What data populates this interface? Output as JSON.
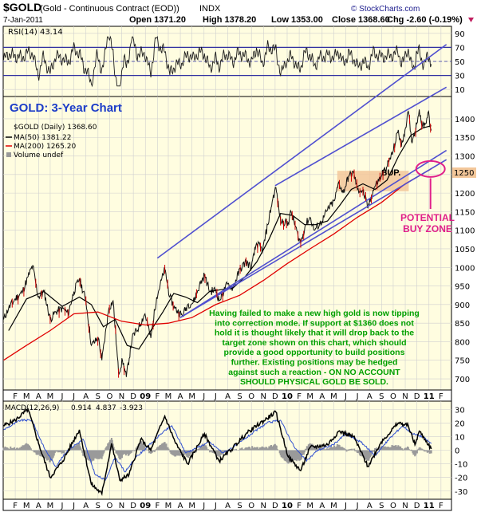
{
  "header": {
    "symbol": "$GOLD",
    "name": "(Gold - Continuous Contract (EOD))",
    "exchange": "INDX",
    "date": "7-Jan-2011",
    "open": "Open 1371.20",
    "high": "High 1378.20",
    "low": "Low 1353.00",
    "close": "Close 1368.60",
    "chg": "Chg -2.60 (-0.19%)",
    "watermark": "© StockCharts.com"
  },
  "colors": {
    "panel_bg": "#fffde0",
    "grid": "#c8c8c8",
    "trend": "#5050d0",
    "ma50": "#000000",
    "ma200": "#e00000",
    "annotation": "#00a000",
    "buyzone": "#e0208a",
    "sup": "#f3c79a",
    "title_blue": "#1c3cc8"
  },
  "chart_data": {
    "type": "line",
    "rsi_panel": {
      "legend": "RSI(14) 43.14",
      "ticks": [
        90,
        70,
        50,
        30,
        10
      ],
      "ylim": [
        0,
        100
      ],
      "upper_line": 70,
      "lower_line": 30
    },
    "price_panel": {
      "title": "GOLD: 3-Year Chart",
      "legend": [
        "$GOLD (Daily) 1368.60",
        "MA(50) 1381.22",
        "MA(200) 1265.20",
        "Volume undef"
      ],
      "ticks": [
        1400,
        1350,
        1300,
        1250,
        1200,
        1150,
        1100,
        1050,
        1000,
        950,
        900,
        850,
        800,
        750,
        700
      ],
      "ylim": [
        670,
        1460
      ],
      "highlight_level": "1250",
      "annotations": {
        "sup": "SUP.",
        "buyzone_line1": "POTENTIAL",
        "buyzone_line2": "BUY ZONE",
        "comment": [
          "Having failed to make a new high gold is now tipping",
          "into correction mode. If support at $1360 does not",
          "hold it is thought likely that it will drop back to the",
          "target zone shown on this chart, which should",
          "provide a good opportunity to build positions",
          "further. Existing positions may be hedged",
          "against such a reaction - ON NO ACCOUNT",
          "SHOULD PHYSICAL GOLD BE SOLD."
        ]
      },
      "price_points": [
        [
          "2008-01-02",
          860
        ],
        [
          "2008-01-15",
          890
        ],
        [
          "2008-02-01",
          915
        ],
        [
          "2008-02-20",
          935
        ],
        [
          "2008-03-05",
          975
        ],
        [
          "2008-03-17",
          1005
        ],
        [
          "2008-03-31",
          920
        ],
        [
          "2008-04-15",
          935
        ],
        [
          "2008-05-01",
          860
        ],
        [
          "2008-05-15",
          880
        ],
        [
          "2008-06-02",
          890
        ],
        [
          "2008-06-16",
          875
        ],
        [
          "2008-07-01",
          935
        ],
        [
          "2008-07-15",
          970
        ],
        [
          "2008-08-01",
          910
        ],
        [
          "2008-08-15",
          790
        ],
        [
          "2008-09-02",
          810
        ],
        [
          "2008-09-11",
          750
        ],
        [
          "2008-09-29",
          890
        ],
        [
          "2008-10-10",
          910
        ],
        [
          "2008-10-24",
          715
        ],
        [
          "2008-11-03",
          750
        ],
        [
          "2008-11-13",
          705
        ],
        [
          "2008-11-28",
          810
        ],
        [
          "2008-12-15",
          840
        ],
        [
          "2008-12-31",
          875
        ],
        [
          "2009-01-15",
          810
        ],
        [
          "2009-01-30",
          920
        ],
        [
          "2009-02-20",
          995
        ],
        [
          "2009-03-05",
          920
        ],
        [
          "2009-03-18",
          890
        ],
        [
          "2009-04-06",
          870
        ],
        [
          "2009-04-20",
          900
        ],
        [
          "2009-05-04",
          905
        ],
        [
          "2009-05-20",
          950
        ],
        [
          "2009-06-02",
          980
        ],
        [
          "2009-06-16",
          935
        ],
        [
          "2009-07-01",
          940
        ],
        [
          "2009-07-10",
          910
        ],
        [
          "2009-07-31",
          955
        ],
        [
          "2009-08-14",
          945
        ],
        [
          "2009-09-02",
          995
        ],
        [
          "2009-09-17",
          1015
        ],
        [
          "2009-10-01",
          1000
        ],
        [
          "2009-10-14",
          1065
        ],
        [
          "2009-10-30",
          1045
        ],
        [
          "2009-11-12",
          1115
        ],
        [
          "2009-11-25",
          1185
        ],
        [
          "2009-12-03",
          1215
        ],
        [
          "2009-12-15",
          1125
        ],
        [
          "2010-01-04",
          1120
        ],
        [
          "2010-01-11",
          1150
        ],
        [
          "2010-01-29",
          1085
        ],
        [
          "2010-02-05",
          1065
        ],
        [
          "2010-02-17",
          1115
        ],
        [
          "2010-03-01",
          1135
        ],
        [
          "2010-03-12",
          1100
        ],
        [
          "2010-04-01",
          1125
        ],
        [
          "2010-04-15",
          1155
        ],
        [
          "2010-05-03",
          1180
        ],
        [
          "2010-05-14",
          1230
        ],
        [
          "2010-05-25",
          1200
        ],
        [
          "2010-06-08",
          1245
        ],
        [
          "2010-06-21",
          1255
        ],
        [
          "2010-07-01",
          1210
        ],
        [
          "2010-07-15",
          1205
        ],
        [
          "2010-07-28",
          1160
        ],
        [
          "2010-08-13",
          1215
        ],
        [
          "2010-08-31",
          1245
        ],
        [
          "2010-09-14",
          1270
        ],
        [
          "2010-09-30",
          1310
        ],
        [
          "2010-10-14",
          1370
        ],
        [
          "2010-10-22",
          1325
        ],
        [
          "2010-11-05",
          1395
        ],
        [
          "2010-11-09",
          1420
        ],
        [
          "2010-11-17",
          1340
        ],
        [
          "2010-11-26",
          1365
        ],
        [
          "2010-12-07",
          1425
        ],
        [
          "2010-12-15",
          1380
        ],
        [
          "2010-12-22",
          1385
        ],
        [
          "2010-12-31",
          1420
        ],
        [
          "2011-01-05",
          1375
        ],
        [
          "2011-01-07",
          1368.6
        ]
      ],
      "ma50_points": [
        [
          "2008-01-15",
          830
        ],
        [
          "2008-03-01",
          915
        ],
        [
          "2008-04-15",
          935
        ],
        [
          "2008-06-01",
          895
        ],
        [
          "2008-07-15",
          920
        ],
        [
          "2008-08-15",
          900
        ],
        [
          "2008-09-15",
          840
        ],
        [
          "2008-10-15",
          860
        ],
        [
          "2008-11-15",
          790
        ],
        [
          "2008-12-15",
          780
        ],
        [
          "2009-01-15",
          830
        ],
        [
          "2009-02-15",
          880
        ],
        [
          "2009-03-15",
          930
        ],
        [
          "2009-04-15",
          920
        ],
        [
          "2009-05-15",
          905
        ],
        [
          "2009-06-15",
          935
        ],
        [
          "2009-07-15",
          940
        ],
        [
          "2009-08-15",
          945
        ],
        [
          "2009-09-15",
          975
        ],
        [
          "2009-10-15",
          1015
        ],
        [
          "2009-11-15",
          1075
        ],
        [
          "2009-12-15",
          1145
        ],
        [
          "2010-01-15",
          1140
        ],
        [
          "2010-02-15",
          1115
        ],
        [
          "2010-03-15",
          1115
        ],
        [
          "2010-04-15",
          1125
        ],
        [
          "2010-05-15",
          1165
        ],
        [
          "2010-06-15",
          1210
        ],
        [
          "2010-07-15",
          1225
        ],
        [
          "2010-08-15",
          1210
        ],
        [
          "2010-09-15",
          1235
        ],
        [
          "2010-10-15",
          1300
        ],
        [
          "2010-11-15",
          1355
        ],
        [
          "2010-12-15",
          1375
        ],
        [
          "2011-01-07",
          1381.22
        ]
      ],
      "ma200_points": [
        [
          "2008-01-02",
          750
        ],
        [
          "2008-03-01",
          790
        ],
        [
          "2008-05-01",
          830
        ],
        [
          "2008-07-01",
          875
        ],
        [
          "2008-09-01",
          880
        ],
        [
          "2008-11-01",
          855
        ],
        [
          "2009-01-01",
          845
        ],
        [
          "2009-03-01",
          850
        ],
        [
          "2009-05-01",
          865
        ],
        [
          "2009-07-01",
          900
        ],
        [
          "2009-09-01",
          925
        ],
        [
          "2009-11-01",
          965
        ],
        [
          "2010-01-01",
          1010
        ],
        [
          "2010-03-01",
          1050
        ],
        [
          "2010-05-01",
          1090
        ],
        [
          "2010-07-01",
          1135
        ],
        [
          "2010-09-01",
          1175
        ],
        [
          "2010-11-01",
          1225
        ],
        [
          "2011-01-07",
          1265.2
        ]
      ],
      "trendlines": [
        [
          [
            "2009-02-01",
            1025
          ],
          [
            "2011-02-15",
            1600
          ]
        ],
        [
          [
            "2009-12-01",
            1220
          ],
          [
            "2011-02-15",
            1485
          ]
        ],
        [
          [
            "2009-04-01",
            865
          ],
          [
            "2011-02-15",
            1290
          ]
        ],
        [
          [
            "2009-04-01",
            865
          ],
          [
            "2011-02-15",
            1315
          ]
        ]
      ]
    },
    "macd_panel": {
      "legend_label": "MACD(12,26,9)",
      "legend_macd": "0.914",
      "legend_signal": "4.837",
      "legend_hist": "-3.923",
      "ticks": [
        30,
        20,
        10,
        0,
        -10,
        -20,
        -30
      ],
      "ylim": [
        -36,
        36
      ],
      "macd_points": [
        [
          "2008-01-02",
          18
        ],
        [
          "2008-02-01",
          22
        ],
        [
          "2008-03-05",
          30
        ],
        [
          "2008-04-01",
          5
        ],
        [
          "2008-05-01",
          -20
        ],
        [
          "2008-06-02",
          -8
        ],
        [
          "2008-07-15",
          15
        ],
        [
          "2008-08-15",
          -25
        ],
        [
          "2008-09-11",
          -32
        ],
        [
          "2008-10-06",
          5
        ],
        [
          "2008-10-27",
          -22
        ],
        [
          "2008-11-20",
          -18
        ],
        [
          "2008-12-20",
          8
        ],
        [
          "2009-01-15",
          0
        ],
        [
          "2009-02-20",
          25
        ],
        [
          "2009-03-20",
          5
        ],
        [
          "2009-04-20",
          -10
        ],
        [
          "2009-06-02",
          12
        ],
        [
          "2009-07-10",
          -8
        ],
        [
          "2009-08-15",
          2
        ],
        [
          "2009-09-17",
          12
        ],
        [
          "2009-10-15",
          18
        ],
        [
          "2009-12-03",
          28
        ],
        [
          "2010-01-04",
          -5
        ],
        [
          "2010-02-05",
          -15
        ],
        [
          "2010-03-01",
          2
        ],
        [
          "2010-04-15",
          4
        ],
        [
          "2010-05-14",
          14
        ],
        [
          "2010-06-21",
          10
        ],
        [
          "2010-07-28",
          -12
        ],
        [
          "2010-08-31",
          6
        ],
        [
          "2010-10-14",
          20
        ],
        [
          "2010-11-09",
          18
        ],
        [
          "2010-11-26",
          4
        ],
        [
          "2010-12-07",
          14
        ],
        [
          "2010-12-22",
          8
        ],
        [
          "2011-01-07",
          0.914
        ]
      ],
      "signal_points": [
        [
          "2008-01-02",
          15
        ],
        [
          "2008-02-15",
          22
        ],
        [
          "2008-03-15",
          22
        ],
        [
          "2008-04-15",
          2
        ],
        [
          "2008-05-15",
          -12
        ],
        [
          "2008-06-15",
          0
        ],
        [
          "2008-07-25",
          8
        ],
        [
          "2008-08-25",
          -18
        ],
        [
          "2008-09-20",
          -22
        ],
        [
          "2008-10-15",
          -5
        ],
        [
          "2008-11-10",
          -16
        ],
        [
          "2008-12-05",
          -6
        ],
        [
          "2009-01-05",
          2
        ],
        [
          "2009-02-10",
          12
        ],
        [
          "2009-03-10",
          18
        ],
        [
          "2009-04-15",
          -2
        ],
        [
          "2009-05-15",
          2
        ],
        [
          "2009-06-15",
          6
        ],
        [
          "2009-07-20",
          -2
        ],
        [
          "2009-08-25",
          4
        ],
        [
          "2009-10-01",
          12
        ],
        [
          "2009-11-10",
          20
        ],
        [
          "2009-12-15",
          22
        ],
        [
          "2010-01-20",
          2
        ],
        [
          "2010-02-20",
          -8
        ],
        [
          "2010-03-20",
          0
        ],
        [
          "2010-04-30",
          4
        ],
        [
          "2010-06-01",
          12
        ],
        [
          "2010-07-10",
          6
        ],
        [
          "2010-08-15",
          -4
        ],
        [
          "2010-09-20",
          8
        ],
        [
          "2010-10-25",
          18
        ],
        [
          "2010-11-20",
          12
        ],
        [
          "2010-12-15",
          10
        ],
        [
          "2011-01-07",
          4.837
        ]
      ]
    },
    "x_axis": {
      "start": "2008-01-01",
      "end": "2011-02-28",
      "month_labels": [
        "F",
        "M",
        "A",
        "M",
        "J",
        "J",
        "A",
        "S",
        "O",
        "N",
        "D",
        "09",
        "F",
        "M",
        "A",
        "M",
        "J",
        "J",
        "A",
        "S",
        "O",
        "N",
        "D",
        "10",
        "F",
        "M",
        "A",
        "M",
        "J",
        "J",
        "A",
        "S",
        "O",
        "N",
        "D",
        "11",
        "F"
      ]
    }
  }
}
